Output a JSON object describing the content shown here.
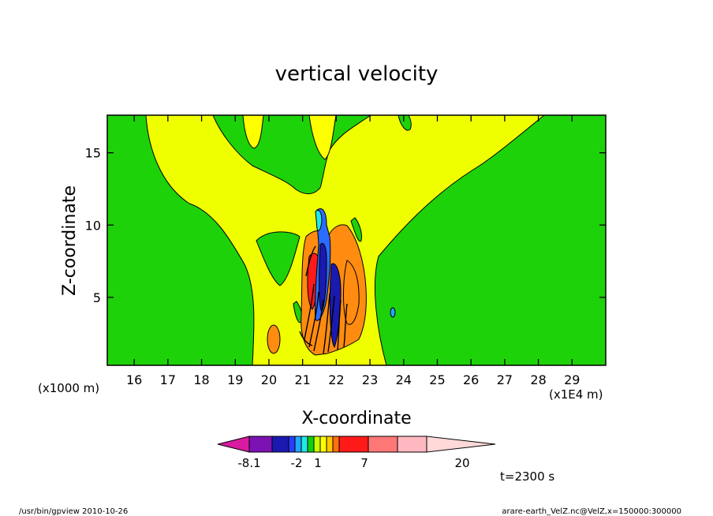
{
  "chart_data": {
    "type": "contour",
    "title": "vertical velocity",
    "xlabel": "X-coordinate",
    "ylabel": "Z-coordinate",
    "x_unit_label": "(x1E4 m)",
    "y_unit_label": "(x1000 m)",
    "xlim": [
      15.2,
      30.0
    ],
    "ylim": [
      0.3,
      17.6
    ],
    "x_ticks": [
      "16",
      "17",
      "18",
      "19",
      "20",
      "21",
      "22",
      "23",
      "24",
      "25",
      "26",
      "27",
      "28",
      "29"
    ],
    "y_ticks": [
      "5",
      "10",
      "15"
    ],
    "colorbar": {
      "levels": [
        -8.1,
        -2,
        1,
        7,
        20
      ],
      "tick_labels": [
        "-8.1",
        "-2",
        "1",
        "7",
        "20"
      ],
      "colors": [
        "#d81aa0",
        "#7d12b4",
        "#1a1ab0",
        "#2a3cff",
        "#20a8ff",
        "#20e8e8",
        "#10d010",
        "#c8ff00",
        "#ffff00",
        "#ffc800",
        "#ff7010",
        "#ff1a1a",
        "#ff7878",
        "#ffb8c0",
        "#ffd8d8"
      ]
    },
    "field_colors": {
      "background": "#1ed20a",
      "weak_updraft": "#f0ff00",
      "updraft": "#ff8c10",
      "strong_updraft": "#ff1a1a",
      "weak_downdraft": "#20e8e8",
      "downdraft": "#2a6cff",
      "strong_downdraft": "#1a1ab0"
    },
    "annotations": {
      "time": "t=2300 s",
      "footer_left": "/usr/bin/gpview   2010-10-26",
      "footer_right": "arare-earth_VelZ.nc@VelZ,x=150000:300000"
    }
  }
}
